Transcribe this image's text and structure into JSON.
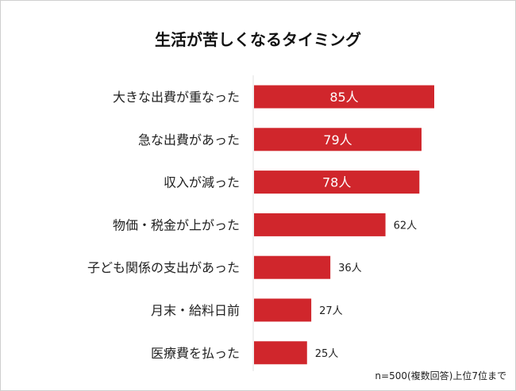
{
  "chart_data": {
    "type": "bar",
    "orientation": "horizontal",
    "title": "生活が苦しくなるタイミング",
    "categories": [
      "大きな出費が重なった",
      "急な出費があった",
      "収入が減った",
      "物価・税金が上がった",
      "子ども関係の支出があった",
      "月末・給料日前",
      "医療費を払った"
    ],
    "values": [
      85,
      79,
      78,
      62,
      36,
      27,
      25
    ],
    "value_labels": [
      "85人",
      "79人",
      "78人",
      "62人",
      "36人",
      "27人",
      "25人"
    ],
    "unit": "人",
    "xlabel": "",
    "ylabel": "",
    "xlim": [
      0,
      100
    ],
    "grid": false,
    "bar_color": "#d0262c",
    "note": "n=500(複数回答)上位7位まで"
  }
}
